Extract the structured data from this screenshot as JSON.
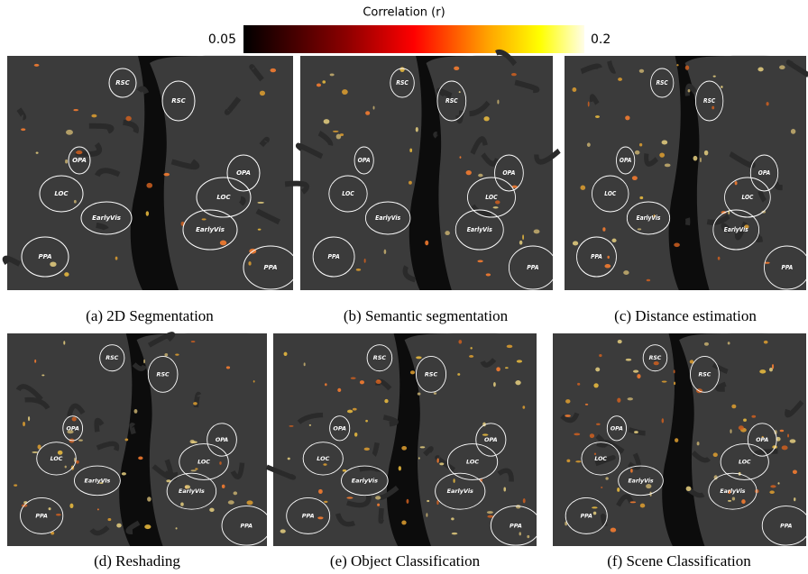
{
  "colorbar": {
    "label": "Correlation (r)",
    "min": 0.05,
    "max": 0.2
  },
  "roi_labels": [
    "RSC",
    "OPA",
    "LOC",
    "EarlyVis",
    "PPA"
  ],
  "panels": [
    {
      "caption": "(a) 2D Segmentation"
    },
    {
      "caption": "(b) Semantic segmentation"
    },
    {
      "caption": "(c) Distance estimation"
    },
    {
      "caption": "(d) Reshading"
    },
    {
      "caption": "(e) Object Classification"
    },
    {
      "caption": "(f) Scene Classification"
    }
  ]
}
